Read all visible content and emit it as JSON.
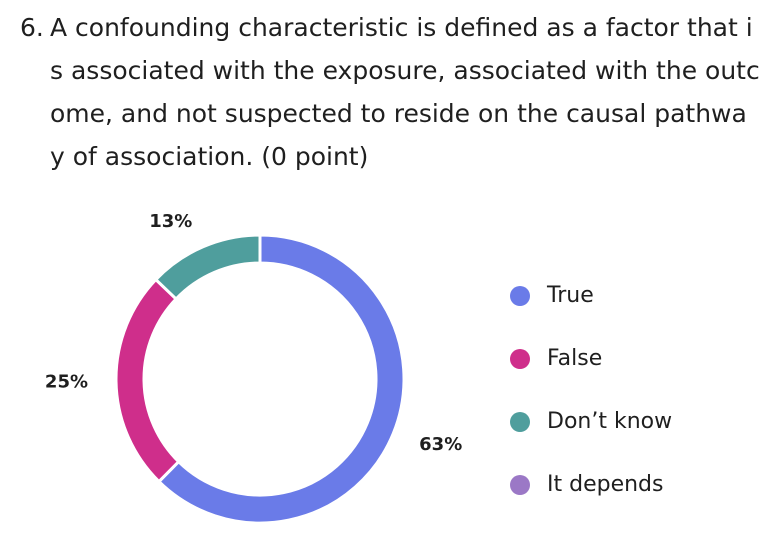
{
  "question": {
    "number": "6.",
    "text": "A confounding characteristic is defined as a factor that i s associated with the exposure, associated with the outc ome, and not suspected to reside on the causal pathwa y of association. (0 point)"
  },
  "chart_data": {
    "type": "pie",
    "style": "donut",
    "categories": [
      "True",
      "False",
      "Don’t know",
      "It depends"
    ],
    "values": [
      63,
      25,
      13,
      0
    ],
    "labels": [
      "63%",
      "25%",
      "13%",
      ""
    ],
    "colors": [
      "#6a7be8",
      "#cf2e8b",
      "#4f9e9d",
      "#9b78c6"
    ],
    "legend_position": "right"
  }
}
